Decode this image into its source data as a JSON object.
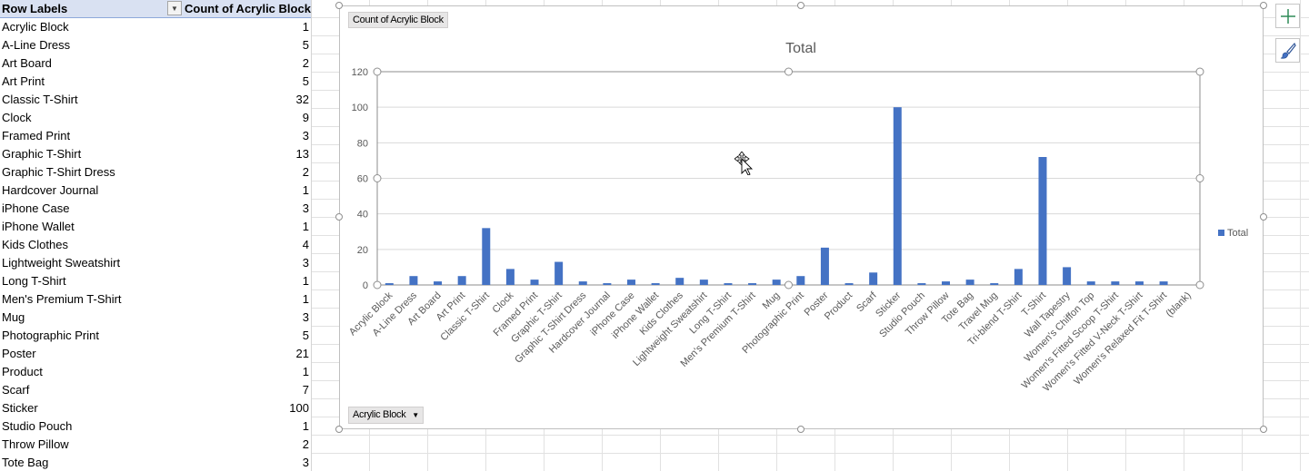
{
  "pivot": {
    "header": {
      "row_labels": "Row Labels",
      "value_header": "Count of Acrylic Block"
    },
    "rows": [
      {
        "label": "Acrylic Block",
        "value": "1"
      },
      {
        "label": "A-Line Dress",
        "value": "5"
      },
      {
        "label": "Art Board",
        "value": "2"
      },
      {
        "label": "Art Print",
        "value": "5"
      },
      {
        "label": "Classic T-Shirt",
        "value": "32"
      },
      {
        "label": "Clock",
        "value": "9"
      },
      {
        "label": "Framed Print",
        "value": "3"
      },
      {
        "label": "Graphic T-Shirt",
        "value": "13"
      },
      {
        "label": "Graphic T-Shirt Dress",
        "value": "2"
      },
      {
        "label": "Hardcover Journal",
        "value": "1"
      },
      {
        "label": "iPhone Case",
        "value": "3"
      },
      {
        "label": "iPhone Wallet",
        "value": "1"
      },
      {
        "label": "Kids Clothes",
        "value": "4"
      },
      {
        "label": "Lightweight Sweatshirt",
        "value": "3"
      },
      {
        "label": "Long T-Shirt",
        "value": "1"
      },
      {
        "label": "Men's Premium T-Shirt",
        "value": "1"
      },
      {
        "label": "Mug",
        "value": "3"
      },
      {
        "label": "Photographic Print",
        "value": "5"
      },
      {
        "label": "Poster",
        "value": "21"
      },
      {
        "label": "Product",
        "value": "1"
      },
      {
        "label": "Scarf",
        "value": "7"
      },
      {
        "label": "Sticker",
        "value": "100"
      },
      {
        "label": "Studio Pouch",
        "value": "1"
      },
      {
        "label": "Throw Pillow",
        "value": "2"
      },
      {
        "label": "Tote Bag",
        "value": "3"
      }
    ]
  },
  "chart": {
    "value_field_button": "Count of Acrylic Block",
    "axis_field_button": "Acrylic Block",
    "bar_color": "#4472c4"
  },
  "chart_data": {
    "type": "bar",
    "title": "Total",
    "xlabel": "",
    "ylabel": "",
    "ylim": [
      0,
      120
    ],
    "yticks": [
      "0",
      "20",
      "40",
      "60",
      "80",
      "100",
      "120"
    ],
    "grid": true,
    "legend_placement": "right",
    "categories": [
      "Acrylic Block",
      "A-Line Dress",
      "Art Board",
      "Art Print",
      "Classic T-Shirt",
      "Clock",
      "Framed Print",
      "Graphic T-Shirt",
      "Graphic T-Shirt Dress",
      "Hardcover Journal",
      "iPhone Case",
      "iPhone Wallet",
      "Kids Clothes",
      "Lightweight Sweatshirt",
      "Long T-Shirt",
      "Men's Premium T-Shirt",
      "Mug",
      "Photographic Print",
      "Poster",
      "Product",
      "Scarf",
      "Sticker",
      "Studio Pouch",
      "Throw Pillow",
      "Tote Bag",
      "Travel Mug",
      "Tri-blend T-Shirt",
      "T-Shirt",
      "Wall Tapestry",
      "Women's Chiffon Top",
      "Women's Fitted Scoop T-Shirt",
      "Women's Fitted V-Neck T-Shirt",
      "Women's Relaxed Fit T-Shirt",
      "(blank)"
    ],
    "series": [
      {
        "name": "Total",
        "values": [
          1,
          5,
          2,
          5,
          32,
          9,
          3,
          13,
          2,
          1,
          3,
          1,
          4,
          3,
          1,
          1,
          3,
          5,
          21,
          1,
          7,
          100,
          1,
          2,
          3,
          1,
          9,
          72,
          10,
          2,
          2,
          2,
          2,
          0
        ]
      }
    ]
  },
  "icons": {
    "chart_elements_button": "plus-icon",
    "chart_styles_button": "paintbrush-icon",
    "cursor": "move-cursor-icon"
  }
}
